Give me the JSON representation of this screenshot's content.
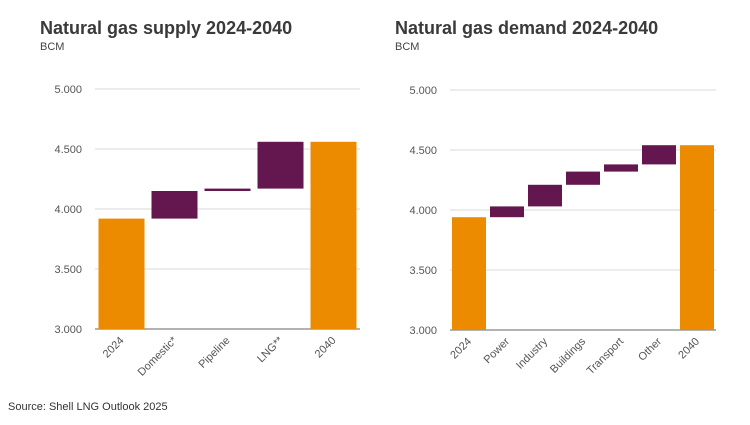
{
  "figure": {
    "source": "Source: Shell LNG Outlook 2025"
  },
  "colors": {
    "total": "#EC8B00",
    "change": "#64164F",
    "grid": "#d9d9d9",
    "axis": "#666666"
  },
  "chart_data": [
    {
      "type": "bar",
      "subtype": "waterfall",
      "title": "Natural gas supply 2024-2040",
      "unit_label": "BCM",
      "ylim": [
        3000,
        5000
      ],
      "yticks": [
        3000,
        3500,
        4000,
        4500,
        5000
      ],
      "ytick_labels": [
        "3.000",
        "3.500",
        "4.000",
        "4.500",
        "5.000"
      ],
      "grid": true,
      "categories": [
        "2024",
        "Domestic*",
        "Pipeline",
        "LNG**",
        "2040"
      ],
      "bars": [
        {
          "category": "2024",
          "kind": "total",
          "start": 3000,
          "end": 3920
        },
        {
          "category": "Domestic*",
          "kind": "change",
          "start": 3920,
          "end": 4150
        },
        {
          "category": "Pipeline",
          "kind": "change",
          "start": 4150,
          "end": 4170
        },
        {
          "category": "LNG**",
          "kind": "change",
          "start": 4170,
          "end": 4560
        },
        {
          "category": "2040",
          "kind": "total",
          "start": 3000,
          "end": 4560
        }
      ]
    },
    {
      "type": "bar",
      "subtype": "waterfall",
      "title": "Natural gas demand 2024-2040",
      "unit_label": "BCM",
      "ylim": [
        3000,
        5000
      ],
      "yticks": [
        3000,
        3500,
        4000,
        4500,
        5000
      ],
      "ytick_labels": [
        "3.000",
        "3.500",
        "4.000",
        "4.500",
        "5.000"
      ],
      "grid": true,
      "categories": [
        "2024",
        "Power",
        "Industry",
        "Buildings",
        "Transport",
        "Other",
        "2040"
      ],
      "bars": [
        {
          "category": "2024",
          "kind": "total",
          "start": 3000,
          "end": 3940
        },
        {
          "category": "Power",
          "kind": "change",
          "start": 3940,
          "end": 4030
        },
        {
          "category": "Industry",
          "kind": "change",
          "start": 4030,
          "end": 4210
        },
        {
          "category": "Buildings",
          "kind": "change",
          "start": 4210,
          "end": 4320
        },
        {
          "category": "Transport",
          "kind": "change",
          "start": 4320,
          "end": 4380
        },
        {
          "category": "Other",
          "kind": "change",
          "start": 4380,
          "end": 4540
        },
        {
          "category": "2040",
          "kind": "total",
          "start": 3000,
          "end": 4540
        }
      ]
    }
  ]
}
